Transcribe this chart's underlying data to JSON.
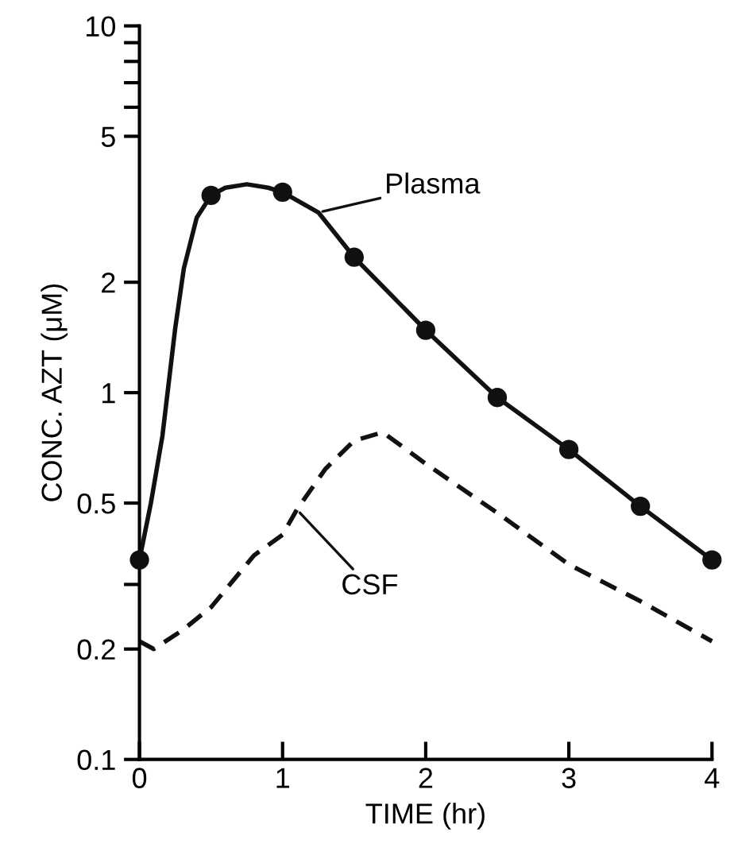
{
  "chart_data": {
    "type": "line",
    "xlabel": "TIME (hr)",
    "ylabel": "CONC. AZT (μM)",
    "log": "y",
    "xlim": [
      0,
      4
    ],
    "xticks": [
      0,
      1,
      2,
      3,
      4
    ],
    "ylim": [
      0.1,
      10
    ],
    "yticks": [
      0.1,
      0.2,
      {
        "value": 0.3,
        "label": null
      },
      0.5,
      1,
      2,
      5,
      {
        "value": 6,
        "label": null
      },
      {
        "value": 7,
        "label": null
      },
      {
        "value": 8,
        "label": null
      },
      {
        "value": 9,
        "label": null
      },
      10
    ],
    "grid": false,
    "series": [
      {
        "color": "#111111",
        "line_style": "solid",
        "marker": "none",
        "x": [
          0,
          0.08,
          0.16,
          0.25,
          0.31,
          0.4,
          0.5,
          0.6,
          0.75,
          0.9,
          1.0,
          1.25,
          1.5,
          2.0,
          2.5,
          3.0,
          3.5,
          4.0
        ],
        "values": [
          0.35,
          0.5,
          0.76,
          1.5,
          2.18,
          3.0,
          3.45,
          3.62,
          3.7,
          3.62,
          3.52,
          3.1,
          2.34,
          1.48,
          0.97,
          0.7,
          0.49,
          0.35
        ]
      },
      {
        "type": "scatter",
        "color": "#111111",
        "marker": "circle",
        "x": [
          0,
          0.5,
          1.0,
          1.5,
          2.0,
          2.5,
          3.0,
          3.5,
          4.0
        ],
        "values": [
          0.35,
          3.45,
          3.52,
          2.34,
          1.48,
          0.97,
          0.7,
          0.49,
          0.35
        ]
      },
      {
        "color": "#111111",
        "line_style": "dashed",
        "marker": "none",
        "x": [
          0,
          0.1,
          0.3,
          0.5,
          0.8,
          1.0,
          1.1,
          1.3,
          1.5,
          1.7,
          2.0,
          2.5,
          3.0,
          3.5,
          4.0
        ],
        "values": [
          0.21,
          0.2,
          0.225,
          0.26,
          0.36,
          0.41,
          0.48,
          0.62,
          0.74,
          0.78,
          0.64,
          0.47,
          0.34,
          0.27,
          0.21
        ]
      }
    ],
    "annotations": [
      {
        "text": "Plasma",
        "x": 1.25,
        "y": 3.1
      },
      {
        "text": "CSF",
        "x": 1.1,
        "y": 0.48
      }
    ]
  }
}
